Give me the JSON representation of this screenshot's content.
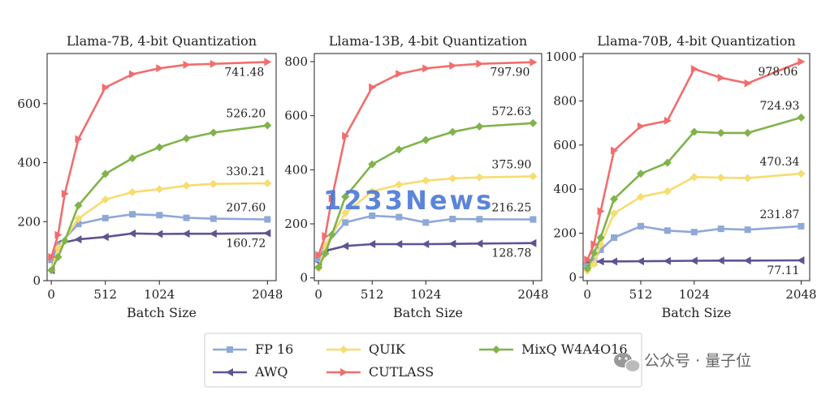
{
  "chart_data": [
    {
      "type": "line",
      "title": "Llama-7B, 4-bit Quantization",
      "xlabel": "Batch Size",
      "ylabel": "",
      "xlim": [
        -40,
        2130
      ],
      "ylim": [
        0,
        770
      ],
      "xticks": [
        0,
        512,
        1024,
        2048
      ],
      "yticks": [
        0,
        200,
        400,
        600
      ],
      "series": [
        {
          "name": "FP 16",
          "x": [
            1,
            64,
            256,
            512,
            768,
            1024,
            1280,
            1536,
            2048
          ],
          "values": [
            70,
            120,
            192,
            212,
            225,
            222,
            213,
            210,
            207.6
          ]
        },
        {
          "name": "AWQ",
          "x": [
            1,
            64,
            256,
            512,
            768,
            1024,
            1280,
            1536,
            2048
          ],
          "values": [
            35,
            125,
            140,
            148,
            160,
            158,
            159,
            159,
            160.72
          ]
        },
        {
          "name": "QUIK",
          "x": [
            1,
            64,
            256,
            512,
            768,
            1024,
            1280,
            1536,
            2048
          ],
          "values": [
            35,
            110,
            210,
            275,
            300,
            310,
            322,
            328,
            330.21
          ]
        },
        {
          "name": "CUTLASS",
          "x": [
            1,
            64,
            128,
            256,
            512,
            768,
            1024,
            1280,
            1536,
            2048
          ],
          "values": [
            80,
            155,
            295,
            480,
            655,
            700,
            720,
            732,
            735,
            741.48
          ]
        },
        {
          "name": "MixQ W4A4O16",
          "x": [
            1,
            64,
            128,
            256,
            512,
            768,
            1024,
            1280,
            1536,
            2048
          ],
          "values": [
            35,
            80,
            135,
            255,
            362,
            415,
            452,
            482,
            502,
            526.2
          ]
        }
      ],
      "labels": [
        {
          "series": "CUTLASS",
          "text": "741.48"
        },
        {
          "series": "MixQ W4A4O16",
          "text": "526.20"
        },
        {
          "series": "QUIK",
          "text": "330.21"
        },
        {
          "series": "FP 16",
          "text": "207.60"
        },
        {
          "series": "AWQ",
          "text": "160.72"
        }
      ]
    },
    {
      "type": "line",
      "title": "Llama-13B, 4-bit Quantization",
      "xlabel": "Batch Size",
      "ylabel": "",
      "xlim": [
        -40,
        2130
      ],
      "ylim": [
        -10,
        830
      ],
      "xticks": [
        0,
        512,
        1024,
        2048
      ],
      "yticks": [
        0,
        200,
        400,
        600,
        800
      ],
      "series": [
        {
          "name": "FP 16",
          "x": [
            1,
            64,
            256,
            512,
            768,
            1024,
            1280,
            1536,
            2048
          ],
          "values": [
            70,
            120,
            205,
            230,
            225,
            205,
            218,
            217,
            216.25
          ]
        },
        {
          "name": "AWQ",
          "x": [
            1,
            64,
            256,
            512,
            768,
            1024,
            1280,
            1536,
            2048
          ],
          "values": [
            60,
            100,
            118,
            125,
            125,
            125,
            126,
            127,
            128.78
          ]
        },
        {
          "name": "QUIK",
          "x": [
            1,
            64,
            256,
            512,
            768,
            1024,
            1280,
            1536,
            2048
          ],
          "values": [
            35,
            120,
            240,
            320,
            345,
            360,
            368,
            372,
            375.9
          ]
        },
        {
          "name": "CUTLASS",
          "x": [
            1,
            64,
            128,
            256,
            512,
            768,
            1024,
            1280,
            1536,
            2048
          ],
          "values": [
            85,
            155,
            295,
            525,
            705,
            755,
            775,
            785,
            792,
            797.9
          ]
        },
        {
          "name": "MixQ W4A4O16",
          "x": [
            1,
            64,
            128,
            256,
            512,
            768,
            1024,
            1280,
            1536,
            2048
          ],
          "values": [
            40,
            90,
            160,
            300,
            420,
            475,
            510,
            540,
            560,
            572.63
          ]
        }
      ],
      "labels": [
        {
          "series": "CUTLASS",
          "text": "797.90"
        },
        {
          "series": "MixQ W4A4O16",
          "text": "572.63"
        },
        {
          "series": "QUIK",
          "text": "375.90"
        },
        {
          "series": "FP 16",
          "text": "216.25"
        },
        {
          "series": "AWQ",
          "text": "128.78"
        }
      ]
    },
    {
      "type": "line",
      "title": "Llama-70B, 4-bit Quantization",
      "xlabel": "Batch Size",
      "ylabel": "",
      "xlim": [
        -40,
        2130
      ],
      "ylim": [
        -15,
        1015
      ],
      "xticks": [
        0,
        512,
        1024,
        2048
      ],
      "yticks": [
        0,
        200,
        400,
        600,
        800,
        1000
      ],
      "series": [
        {
          "name": "FP 16",
          "x": [
            1,
            64,
            128,
            256,
            512,
            768,
            1024,
            1280,
            1536,
            2048
          ],
          "values": [
            50,
            75,
            125,
            180,
            232,
            212,
            205,
            220,
            216,
            231.87
          ]
        },
        {
          "name": "AWQ",
          "x": [
            1,
            64,
            128,
            256,
            512,
            768,
            1024,
            1280,
            1536,
            2048
          ],
          "values": [
            60,
            70,
            72,
            72,
            73,
            74,
            75,
            76,
            76,
            77.11
          ]
        },
        {
          "name": "QUIK",
          "x": [
            1,
            64,
            128,
            256,
            512,
            768,
            1024,
            1280,
            1536,
            2048
          ],
          "values": [
            30,
            60,
            150,
            290,
            365,
            390,
            455,
            452,
            450,
            470.34
          ]
        },
        {
          "name": "CUTLASS",
          "x": [
            1,
            64,
            128,
            256,
            512,
            768,
            1024,
            1280,
            1536,
            2048
          ],
          "values": [
            80,
            150,
            300,
            575,
            685,
            710,
            945,
            905,
            880,
            978.06
          ]
        },
        {
          "name": "MixQ W4A4O16",
          "x": [
            1,
            64,
            128,
            256,
            512,
            768,
            1024,
            1280,
            1536,
            2048
          ],
          "values": [
            40,
            110,
            180,
            355,
            470,
            520,
            660,
            655,
            655,
            724.93
          ]
        }
      ],
      "labels": [
        {
          "series": "CUTLASS",
          "text": "978.06"
        },
        {
          "series": "MixQ W4A4O16",
          "text": "724.93"
        },
        {
          "series": "QUIK",
          "text": "470.34"
        },
        {
          "series": "FP 16",
          "text": "231.87"
        },
        {
          "series": "AWQ",
          "text": "77.11"
        }
      ]
    }
  ],
  "legend": {
    "placement": "bottom-center",
    "entries": [
      {
        "name": "FP 16",
        "marker": "square"
      },
      {
        "name": "QUIK",
        "marker": "diamond"
      },
      {
        "name": "MixQ W4A4O16",
        "marker": "diamond"
      },
      {
        "name": "AWQ",
        "marker": "triangle-left"
      },
      {
        "name": "CUTLASS",
        "marker": "triangle-right"
      }
    ]
  },
  "colors": {
    "FP 16": "#8ea8d8",
    "AWQ": "#5f5392",
    "QUIK": "#f7dc6f",
    "CUTLASS": "#f26d6d",
    "MixQ W4A4O16": "#80b34c"
  },
  "watermark": "1233News",
  "brand": "公众号 · 量子位"
}
